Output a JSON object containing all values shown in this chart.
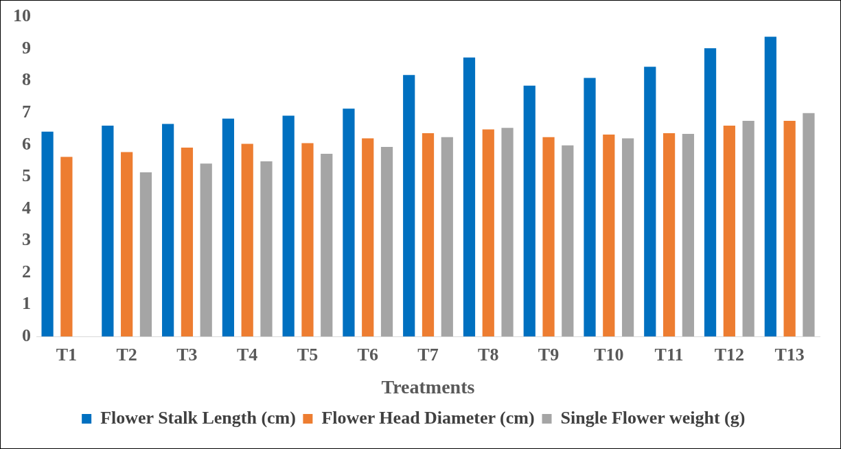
{
  "chart_data": {
    "type": "bar",
    "xlabel": "Treatments",
    "categories": [
      "T1",
      "T2",
      "T3",
      "T4",
      "T5",
      "T6",
      "T7",
      "T8",
      "T9",
      "T10",
      "T11",
      "T12",
      "T13"
    ],
    "series": [
      {
        "name": "Flower Stalk Length (cm)",
        "color": "#0070c0",
        "values": [
          6.41,
          6.6,
          6.65,
          6.82,
          6.91,
          7.13,
          8.18,
          8.73,
          7.85,
          8.09,
          8.44,
          9.02,
          9.38
        ]
      },
      {
        "name": "Flower Head Diameter (cm)",
        "color": "#ed7d31",
        "values": [
          5.62,
          5.77,
          5.91,
          6.03,
          6.05,
          6.2,
          6.36,
          6.48,
          6.24,
          6.32,
          6.36,
          6.6,
          6.75
        ]
      },
      {
        "name": "Single Flower weight (g)",
        "color": "#a5a5a5",
        "values": [
          null,
          5.14,
          5.41,
          5.48,
          5.72,
          5.93,
          6.24,
          6.53,
          5.98,
          6.2,
          6.34,
          6.75,
          6.99
        ]
      }
    ],
    "ylim": [
      0,
      10
    ],
    "yticks": [
      0,
      1,
      2,
      3,
      4,
      5,
      6,
      7,
      8,
      9,
      10
    ],
    "grid": false,
    "legend": "bottom"
  }
}
